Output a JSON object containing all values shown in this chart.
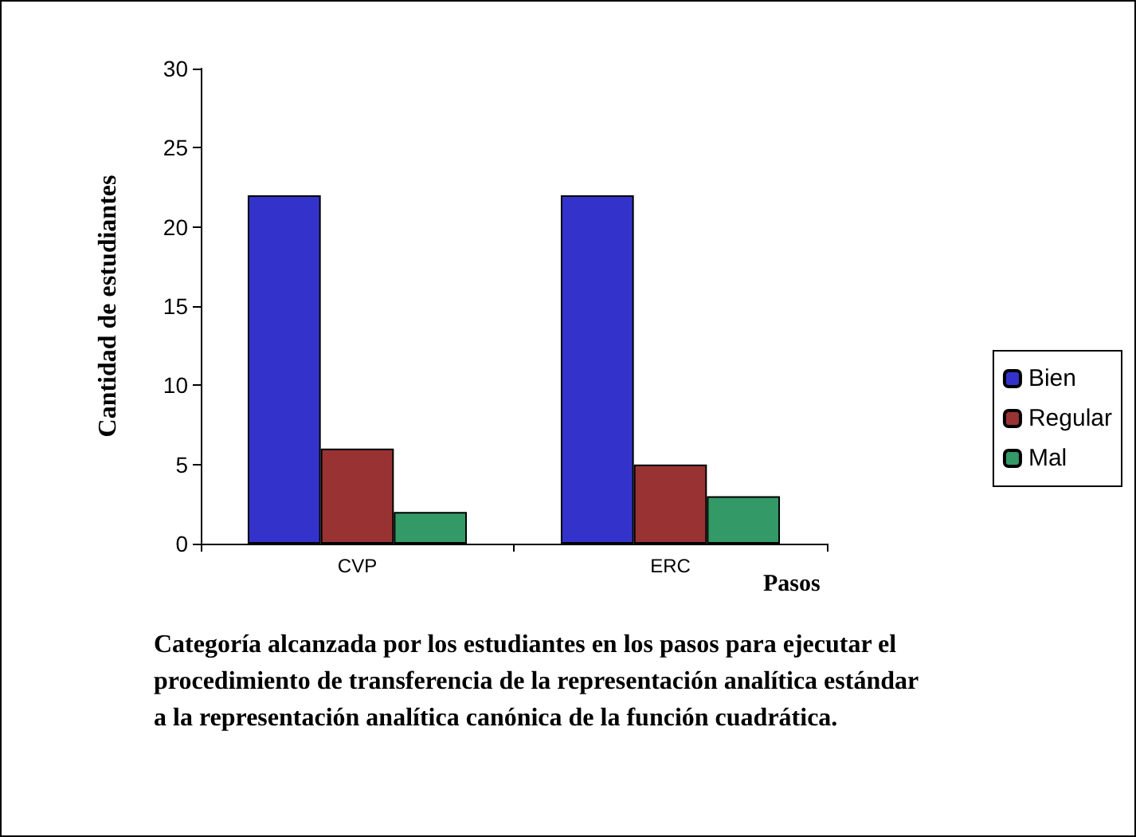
{
  "chart_data": {
    "type": "bar",
    "categories": [
      "CVP",
      "ERC"
    ],
    "series": [
      {
        "name": "Bien",
        "color": "#3333cc",
        "values": [
          22,
          22
        ]
      },
      {
        "name": "Regular",
        "color": "#993333",
        "values": [
          6,
          5
        ]
      },
      {
        "name": "Mal",
        "color": "#339966",
        "values": [
          2,
          3
        ]
      }
    ],
    "ylim": [
      0,
      30
    ],
    "yticks": [
      0,
      5,
      10,
      15,
      20,
      25,
      30
    ],
    "ylabel": "Cantidad de estudiantes",
    "xlabel": "Pasos",
    "grid": false,
    "legend": "right",
    "annotations": [
      "Categoría alcanzada por los estudiantes en los pasos para ejecutar el procedimiento de transferencia de la representación analítica estándar a la representación analítica canónica de la función cuadrática."
    ]
  }
}
